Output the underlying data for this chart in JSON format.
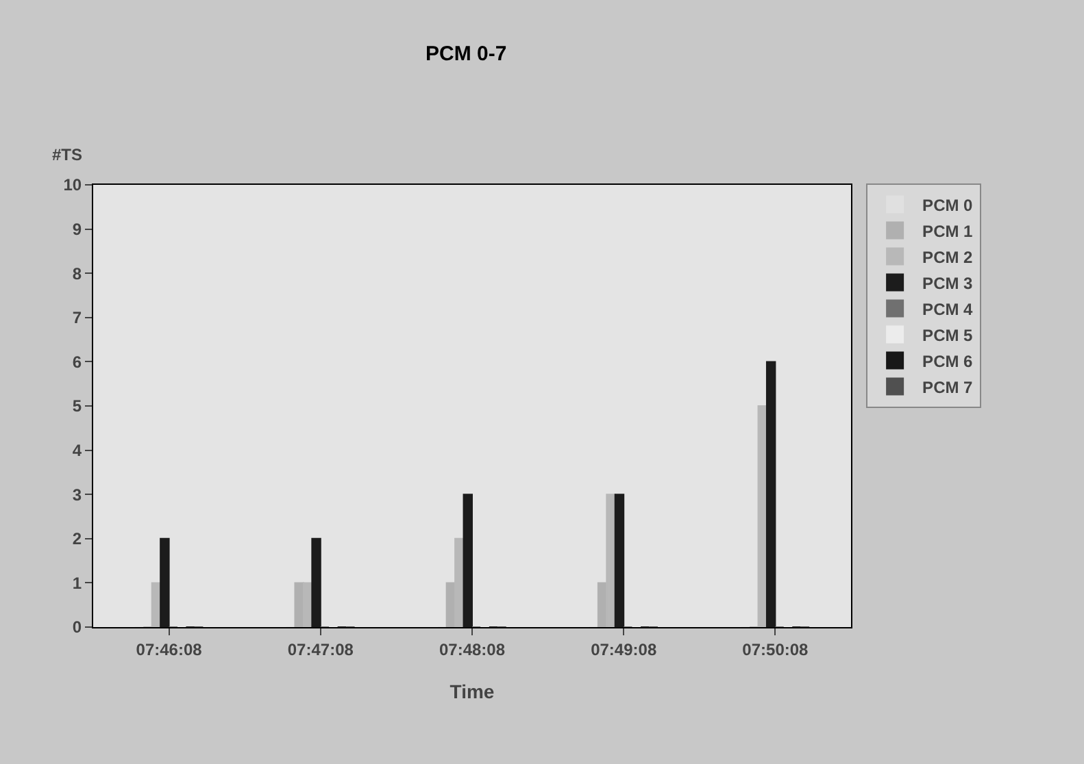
{
  "chart_data": {
    "type": "bar",
    "title": "PCM 0-7",
    "xlabel": "Time",
    "ylabel": "#TS",
    "categories": [
      "07:46:08",
      "07:47:08",
      "07:48:08",
      "07:49:08",
      "07:50:08"
    ],
    "series": [
      {
        "name": "PCM 0",
        "color": "#e0e0e0",
        "values": [
          0,
          0,
          0,
          0,
          0
        ]
      },
      {
        "name": "PCM 1",
        "color": "#b0b0b0",
        "values": [
          0,
          1,
          1,
          1,
          0
        ]
      },
      {
        "name": "PCM 2",
        "color": "#b8b8b8",
        "values": [
          1,
          1,
          2,
          3,
          5
        ]
      },
      {
        "name": "PCM 3",
        "color": "#1c1c1c",
        "values": [
          2,
          2,
          3,
          3,
          6
        ]
      },
      {
        "name": "PCM 4",
        "color": "#707070",
        "values": [
          0,
          0,
          0,
          0,
          0
        ]
      },
      {
        "name": "PCM 5",
        "color": "#ececec",
        "values": [
          0,
          0,
          0,
          0,
          0
        ]
      },
      {
        "name": "PCM 6",
        "color": "#181818",
        "values": [
          0,
          0,
          0,
          0,
          0
        ]
      },
      {
        "name": "PCM 7",
        "color": "#505050",
        "values": [
          0,
          0,
          0,
          0,
          0
        ]
      }
    ],
    "ylim": [
      0,
      10
    ],
    "yticks": [
      0,
      1,
      2,
      3,
      4,
      5,
      6,
      7,
      8,
      9,
      10
    ],
    "grid": false,
    "legend": "right"
  }
}
